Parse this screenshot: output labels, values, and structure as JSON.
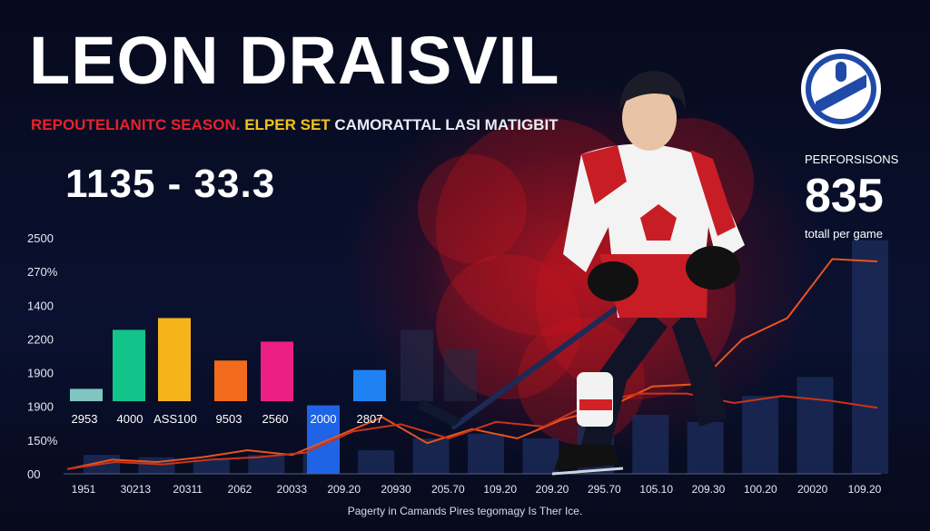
{
  "header": {
    "title": "LEON DRAISVIL",
    "subtitle_red": "REPOUTELIANITC SEASON.",
    "subtitle_yellow": "ELPER SET",
    "subtitle_white": "CAMORATTAL LASI MATIGBIT",
    "big_stat": "1135  -  33.3"
  },
  "performance": {
    "label": "PERFORSISONS",
    "value": "835",
    "sub": "totall per game"
  },
  "footer": {
    "caption": "Pagerty in Camands Pires tegomagy Is Ther Ice."
  },
  "colors": {
    "accent_red": "#e8212b",
    "accent_yellow": "#f4c319",
    "line_orange": "#e8541c",
    "background": "#06091a"
  },
  "icons": {
    "logo": "team-logo-icon",
    "player": "hockey-player-icon"
  },
  "chart_data": {
    "type": "bar",
    "y_tick_labels": [
      "2500",
      "270%",
      "1400",
      "2200",
      "1900",
      "1900",
      "150%",
      "00"
    ],
    "x_tick_labels": [
      "1951",
      "30213",
      "20311",
      "2062",
      "20033",
      "209.20",
      "20930",
      "205.70",
      "109.20",
      "209.20",
      "295.70",
      "105.10",
      "209.30",
      "100.20",
      "20020",
      "109.20"
    ],
    "bar_value_labels": [
      "2953",
      "4000",
      "ASS100",
      "9503",
      "2560",
      "2000",
      "2807"
    ],
    "bars": [
      {
        "value": 0.36,
        "color": "#7fc6c0"
      },
      {
        "value": 0.61,
        "color": "#12c38a"
      },
      {
        "value": 0.66,
        "color": "#f5b41c"
      },
      {
        "value": 0.48,
        "color": "#f26a1b"
      },
      {
        "value": 0.56,
        "color": "#ee1f84"
      },
      {
        "value": 0.29,
        "color": "#1f63e6"
      },
      {
        "value": 0.44,
        "color": "#1f82f2"
      },
      {
        "value": 0.61,
        "color": "#2a2e4a"
      },
      {
        "value": 0.53,
        "color": "#252a45"
      }
    ],
    "background_bars": [
      0.08,
      0.07,
      0.06,
      0.08,
      0.09,
      0.1,
      0.15,
      0.17,
      0.15,
      0.2,
      0.25,
      0.22,
      0.33,
      0.41,
      0.99
    ],
    "line_series": [
      [
        0.02,
        0.06,
        0.05,
        0.07,
        0.1,
        0.08,
        0.16,
        0.24,
        0.13,
        0.19,
        0.15,
        0.23,
        0.28,
        0.37,
        0.38,
        0.57,
        0.66,
        0.91,
        0.9
      ],
      [
        0.02,
        0.05,
        0.04,
        0.06,
        0.07,
        0.09,
        0.18,
        0.21,
        0.15,
        0.22,
        0.2,
        0.3,
        0.34,
        0.34,
        0.3,
        0.33,
        0.31,
        0.28
      ]
    ]
  }
}
